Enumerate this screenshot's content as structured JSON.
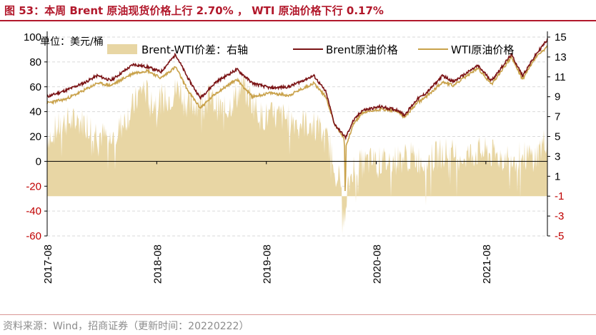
{
  "title": "图 53：本周 Brent 原油现货价格上行 2.70% ， WTI 原油价格下行 0.17%",
  "source": "资料来源：Wind，招商证券（更新时间：20220222）",
  "colors": {
    "brent": "#7B1416",
    "wti": "#C9A24B",
    "spread": "#E8D6A4",
    "negative_tick": "#C00000",
    "title": "#B2182B"
  },
  "chart_data": {
    "type": "line",
    "unit_label": "单位：美元/桶",
    "x_tick_labels": [
      "2017-08",
      "2018-08",
      "2019-08",
      "2020-08",
      "2021-08"
    ],
    "x_range": [
      "2017-08-01",
      "2022-02-22"
    ],
    "y_left": {
      "range": [
        -60,
        100
      ],
      "ticks": [
        100,
        80,
        60,
        40,
        20,
        0,
        -20,
        -40,
        -60
      ]
    },
    "y_right": {
      "range": [
        -5,
        15
      ],
      "ticks": [
        15,
        13,
        11,
        9,
        7,
        5,
        3,
        1,
        -1,
        -3,
        -5
      ]
    },
    "legend": [
      {
        "key": "spread",
        "label": "Brent-WTI价差：右轴",
        "marker": "area"
      },
      {
        "key": "brent",
        "label": "Brent原油价格",
        "marker": "line"
      },
      {
        "key": "wti",
        "label": "WTI原油价格",
        "marker": "line"
      }
    ],
    "series": [
      {
        "name": "Brent原油价格",
        "key": "brent",
        "axis": "left",
        "type": "line",
        "x": [
          "2017-08-01",
          "2017-10-01",
          "2017-12-01",
          "2018-01-15",
          "2018-03-01",
          "2018-05-15",
          "2018-07-01",
          "2018-08-15",
          "2018-10-03",
          "2018-11-15",
          "2018-12-24",
          "2019-02-15",
          "2019-04-25",
          "2019-06-15",
          "2019-08-15",
          "2019-10-15",
          "2020-01-06",
          "2020-02-15",
          "2020-03-15",
          "2020-04-21",
          "2020-05-15",
          "2020-06-15",
          "2020-08-15",
          "2020-10-15",
          "2020-11-02",
          "2020-12-15",
          "2021-01-15",
          "2021-03-10",
          "2021-04-15",
          "2021-07-05",
          "2021-08-20",
          "2021-10-25",
          "2021-12-01",
          "2022-01-15",
          "2022-02-22"
        ],
        "values": [
          52,
          57,
          63,
          69,
          65,
          78,
          76,
          72,
          86,
          66,
          51,
          64,
          74,
          63,
          59,
          60,
          69,
          56,
          30,
          19,
          32,
          41,
          44,
          41,
          37,
          50,
          55,
          69,
          64,
          77,
          65,
          86,
          69,
          86,
          98
        ]
      },
      {
        "name": "WTI原油价格",
        "key": "wti",
        "axis": "left",
        "type": "line",
        "x": [
          "2017-08-01",
          "2017-10-01",
          "2017-12-01",
          "2018-01-15",
          "2018-03-01",
          "2018-05-15",
          "2018-07-01",
          "2018-08-15",
          "2018-10-03",
          "2018-11-15",
          "2018-12-24",
          "2019-02-15",
          "2019-04-25",
          "2019-06-15",
          "2019-08-15",
          "2019-10-15",
          "2020-01-06",
          "2020-02-15",
          "2020-03-15",
          "2020-04-17",
          "2020-04-20",
          "2020-04-22",
          "2020-05-15",
          "2020-06-15",
          "2020-08-15",
          "2020-10-15",
          "2020-11-02",
          "2020-12-15",
          "2021-01-15",
          "2021-03-10",
          "2021-04-15",
          "2021-07-05",
          "2021-08-20",
          "2021-10-25",
          "2021-12-01",
          "2022-01-15",
          "2022-02-22"
        ],
        "values": [
          47,
          50,
          57,
          63,
          61,
          71,
          73,
          67,
          76,
          56,
          43,
          55,
          66,
          52,
          55,
          53,
          63,
          52,
          30,
          18,
          -38,
          12,
          29,
          39,
          42,
          40,
          35,
          47,
          52,
          64,
          61,
          75,
          62,
          84,
          66,
          84,
          92
        ]
      },
      {
        "name": "Brent-WTI价差：右轴",
        "key": "spread",
        "axis": "right",
        "type": "area",
        "x": [
          "2017-08-01",
          "2017-10-01",
          "2017-12-01",
          "2018-01-15",
          "2018-03-01",
          "2018-05-15",
          "2018-06-15",
          "2018-07-15",
          "2018-09-15",
          "2018-10-15",
          "2018-11-15",
          "2019-01-15",
          "2019-03-15",
          "2019-05-15",
          "2019-07-15",
          "2019-09-15",
          "2019-11-15",
          "2020-01-15",
          "2020-03-01",
          "2020-04-10",
          "2020-04-20",
          "2020-04-25",
          "2020-05-15",
          "2020-07-15",
          "2020-09-15",
          "2020-11-15",
          "2021-01-15",
          "2021-03-15",
          "2021-05-15",
          "2021-07-15",
          "2021-09-15",
          "2021-11-15",
          "2022-01-15",
          "2022-02-22"
        ],
        "values": [
          5,
          6.5,
          6.5,
          5.5,
          4.5,
          8,
          10,
          8.5,
          9,
          10,
          8,
          9,
          7.5,
          10,
          7,
          7,
          6.5,
          6,
          4,
          -0.5,
          -4.5,
          -1,
          2,
          2.5,
          2.5,
          3,
          2.5,
          3.5,
          3,
          3.5,
          3,
          3,
          3,
          5
        ]
      }
    ]
  }
}
